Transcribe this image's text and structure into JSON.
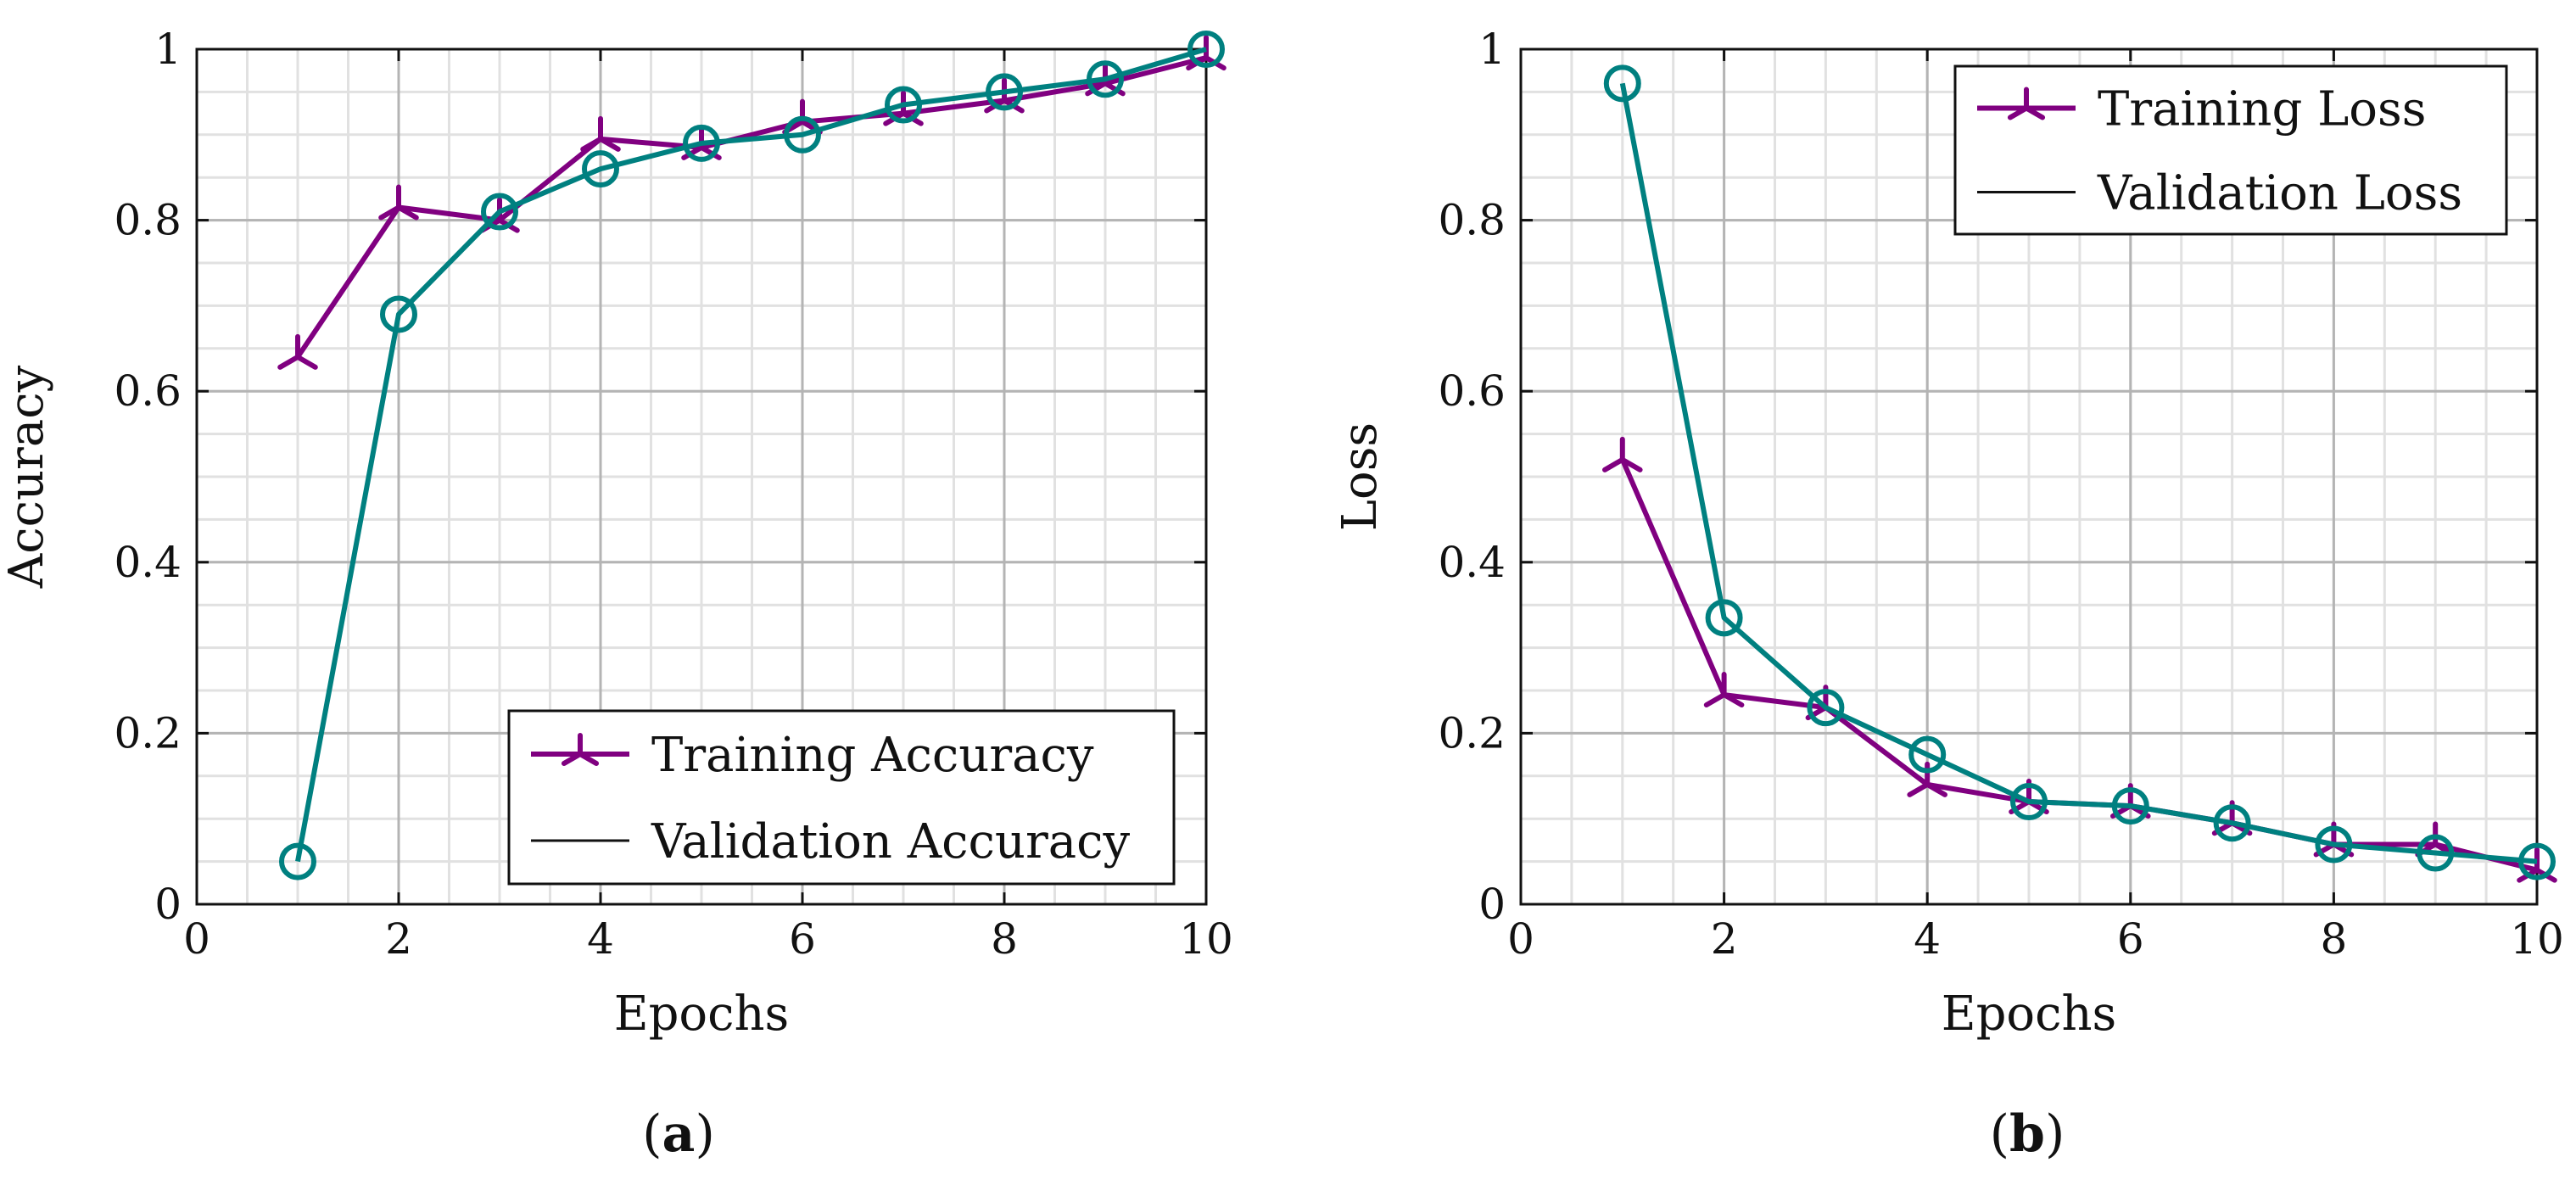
{
  "chart_data": [
    {
      "type": "line",
      "panel_label_open": "(",
      "panel_label_letter": "a",
      "panel_label_close": ")",
      "xlabel": "Epochs",
      "ylabel": "Accuracy",
      "xlim": [
        0,
        10
      ],
      "ylim": [
        0,
        1
      ],
      "xticks": [
        0,
        2,
        4,
        6,
        8,
        10
      ],
      "yticks": [
        0,
        0.2,
        0.4,
        0.6,
        0.8,
        1
      ],
      "x_tick_labels": [
        "0",
        "2",
        "4",
        "6",
        "8",
        "10"
      ],
      "y_tick_labels": [
        "0",
        "0.2",
        "0.4",
        "0.6",
        "0.8",
        "1"
      ],
      "grid": true,
      "legend_position": "bottom-right",
      "series": [
        {
          "name": "Training Accuracy",
          "color": "#800080",
          "marker": "tri-star",
          "x": [
            1,
            2,
            3,
            4,
            5,
            6,
            7,
            8,
            9,
            10
          ],
          "values": [
            0.64,
            0.815,
            0.8,
            0.895,
            0.885,
            0.915,
            0.925,
            0.94,
            0.96,
            0.99
          ]
        },
        {
          "name": "Validation Accuracy",
          "color": "#008080",
          "marker": "circle",
          "x": [
            1,
            2,
            3,
            4,
            5,
            6,
            7,
            8,
            9,
            10
          ],
          "values": [
            0.05,
            0.69,
            0.81,
            0.86,
            0.89,
            0.9,
            0.935,
            0.95,
            0.965,
            1.0
          ]
        }
      ]
    },
    {
      "type": "line",
      "panel_label_open": "(",
      "panel_label_letter": "b",
      "panel_label_close": ")",
      "xlabel": "Epochs",
      "ylabel": "Loss",
      "xlim": [
        0,
        10
      ],
      "ylim": [
        0,
        1
      ],
      "xticks": [
        0,
        2,
        4,
        6,
        8,
        10
      ],
      "yticks": [
        0,
        0.2,
        0.4,
        0.6,
        0.8,
        1
      ],
      "x_tick_labels": [
        "0",
        "2",
        "4",
        "6",
        "8",
        "10"
      ],
      "y_tick_labels": [
        "0",
        "0.2",
        "0.4",
        "0.6",
        "0.8",
        "1"
      ],
      "grid": true,
      "legend_position": "top-right",
      "series": [
        {
          "name": "Training Loss",
          "color": "#800080",
          "marker": "tri-star",
          "x": [
            1,
            2,
            3,
            4,
            5,
            6,
            7,
            8,
            9,
            10
          ],
          "values": [
            0.52,
            0.245,
            0.23,
            0.14,
            0.12,
            0.115,
            0.095,
            0.07,
            0.07,
            0.04
          ]
        },
        {
          "name": "Validation Loss",
          "color": "#008080",
          "marker": "circle",
          "x": [
            1,
            2,
            3,
            4,
            5,
            6,
            7,
            8,
            9,
            10
          ],
          "values": [
            0.96,
            0.335,
            0.23,
            0.175,
            0.12,
            0.115,
            0.095,
            0.07,
            0.06,
            0.05
          ]
        }
      ]
    }
  ]
}
